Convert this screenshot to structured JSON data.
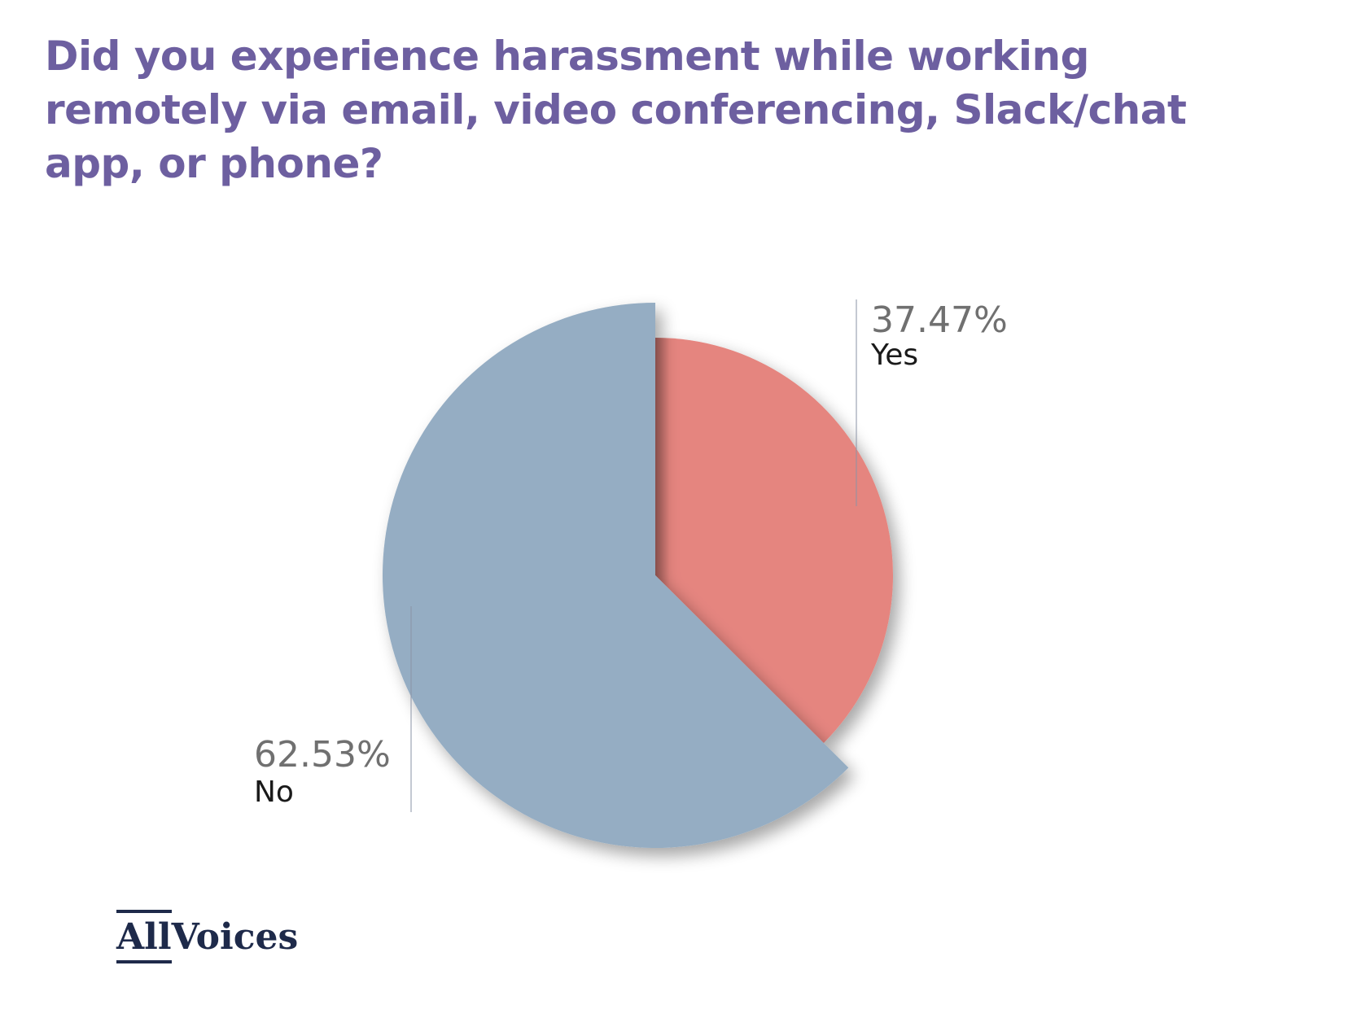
{
  "chart_data": {
    "type": "pie",
    "title": "Did you experience harassment while working remotely via email, video conferencing, Slack/chat app, or phone?",
    "slices": [
      {
        "label": "Yes",
        "value": 37.47,
        "value_label": "37.47%",
        "color": "#e5857f"
      },
      {
        "label": "No",
        "value": 62.53,
        "value_label": "62.53%",
        "color": "#95adc3"
      }
    ]
  },
  "logo": {
    "part1": "All",
    "part2": "Voices"
  }
}
